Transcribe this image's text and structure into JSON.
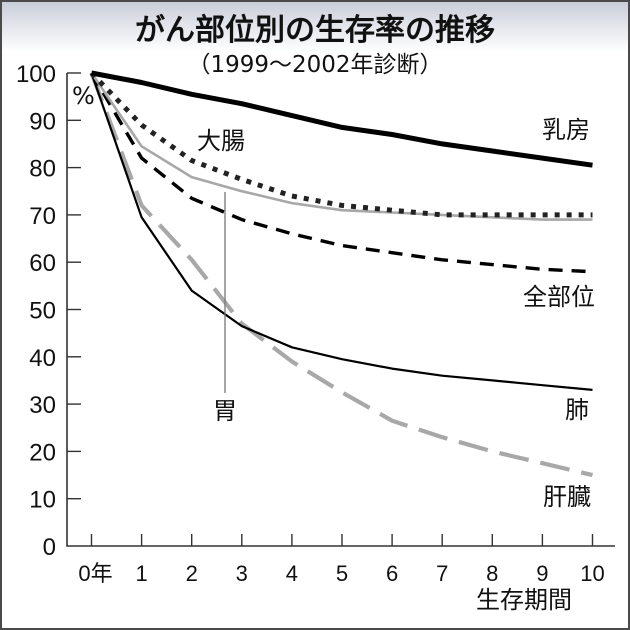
{
  "chart_data": {
    "type": "line",
    "title": "がん部位別の生存率の推移",
    "subtitle": "（1999～2002年診断）",
    "xlabel": "生存期間",
    "ylabel": "%",
    "x": [
      0,
      1,
      2,
      3,
      4,
      5,
      6,
      7,
      8,
      9,
      10
    ],
    "x_tick_labels": [
      "0年",
      "1",
      "2",
      "3",
      "4",
      "5",
      "6",
      "7",
      "8",
      "9",
      "10"
    ],
    "y_ticks": [
      0,
      10,
      20,
      30,
      40,
      50,
      60,
      70,
      80,
      90,
      100
    ],
    "ylim": [
      0,
      100
    ],
    "xlim": [
      0,
      10
    ],
    "grid": false,
    "legend_position": "inline labels",
    "series": [
      {
        "name": "乳房",
        "style": "solid-thick",
        "color": "#000000",
        "values": [
          100,
          98,
          95.5,
          93.5,
          91,
          88.5,
          87,
          85,
          83.5,
          82,
          80.5
        ]
      },
      {
        "name": "大腸",
        "style": "dotted",
        "color": "#222222",
        "values": [
          100,
          89,
          81.5,
          77.5,
          74,
          72,
          71,
          70,
          70,
          70,
          70
        ]
      },
      {
        "name": "胃",
        "style": "solid-gray",
        "color": "#a8a8a8",
        "values": [
          100,
          84.5,
          78,
          75,
          72.5,
          71,
          70.5,
          70,
          69.5,
          69,
          69
        ]
      },
      {
        "name": "全部位",
        "style": "dashed",
        "color": "#000000",
        "values": [
          100,
          82,
          73.5,
          69,
          66,
          63.5,
          62,
          60.5,
          59.5,
          58.5,
          58
        ]
      },
      {
        "name": "肺",
        "style": "solid-thin",
        "color": "#000000",
        "values": [
          100,
          69.5,
          54,
          46.5,
          42,
          39.5,
          37.5,
          36,
          35,
          34,
          33
        ]
      },
      {
        "name": "肝臓",
        "style": "long-dash-gray",
        "color": "#a8a8a8",
        "values": [
          100,
          72,
          60.5,
          47,
          39,
          32.5,
          26.5,
          23,
          20,
          17.5,
          15
        ]
      }
    ],
    "annotations": [
      {
        "text": "胃",
        "type": "callout-line",
        "x": 2.65
      }
    ]
  },
  "labels": {
    "breast": "乳房",
    "colon": "大腸",
    "stomach": "胃",
    "all": "全部位",
    "lung": "肺",
    "liver": "肝臓",
    "percent": "%"
  }
}
